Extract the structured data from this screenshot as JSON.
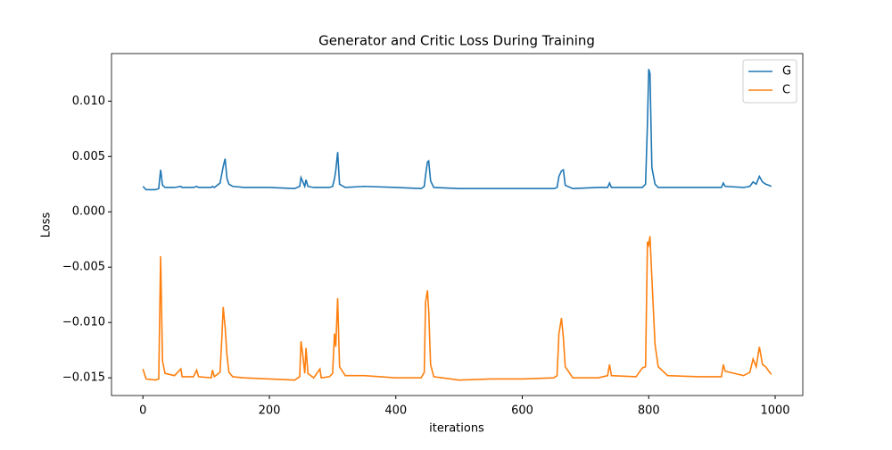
{
  "chart_data": {
    "type": "line",
    "title": "Generator and Critic Loss During Training",
    "x_label": "iterations",
    "y_label": "Loss",
    "x": [
      0,
      5,
      20,
      25,
      28,
      31,
      35,
      50,
      60,
      62,
      80,
      85,
      88,
      108,
      110,
      113,
      122,
      125,
      127,
      130,
      133,
      136,
      142,
      160,
      200,
      240,
      248,
      250,
      253,
      256,
      258,
      261,
      270,
      280,
      282,
      295,
      300,
      303,
      305,
      308,
      311,
      320,
      350,
      400,
      440,
      445,
      447,
      450,
      452,
      455,
      460,
      500,
      550,
      600,
      650,
      655,
      658,
      662,
      665,
      668,
      680,
      720,
      735,
      738,
      741,
      780,
      790,
      795,
      798,
      800,
      802,
      805,
      810,
      815,
      830,
      880,
      915,
      918,
      921,
      950,
      960,
      965,
      970,
      975,
      980,
      985,
      990,
      994
    ],
    "series": [
      {
        "name": "G",
        "color": "#1f77b4",
        "values": [
          0.0023,
          0.002,
          0.002,
          0.0021,
          0.0038,
          0.0024,
          0.0022,
          0.0022,
          0.0023,
          0.0022,
          0.0022,
          0.0023,
          0.0022,
          0.0022,
          0.0023,
          0.0022,
          0.0026,
          0.0035,
          0.0041,
          0.0048,
          0.003,
          0.0025,
          0.0023,
          0.0022,
          0.0022,
          0.0021,
          0.0023,
          0.0031,
          0.0027,
          0.0023,
          0.0029,
          0.0023,
          0.0022,
          0.0022,
          0.0022,
          0.0022,
          0.0023,
          0.003,
          0.0037,
          0.0054,
          0.0025,
          0.0022,
          0.0023,
          0.0022,
          0.0021,
          0.0023,
          0.0033,
          0.0045,
          0.0046,
          0.0028,
          0.0022,
          0.0021,
          0.0021,
          0.0021,
          0.0021,
          0.0022,
          0.0032,
          0.0037,
          0.0038,
          0.0024,
          0.0021,
          0.0022,
          0.0022,
          0.0026,
          0.0022,
          0.0022,
          0.0022,
          0.0025,
          0.008,
          0.0129,
          0.0125,
          0.004,
          0.0025,
          0.0022,
          0.0022,
          0.0022,
          0.0022,
          0.0026,
          0.0023,
          0.0022,
          0.0023,
          0.0027,
          0.0025,
          0.0032,
          0.0027,
          0.0025,
          0.0024,
          0.0023
        ]
      },
      {
        "name": "C",
        "color": "#ff7f0e",
        "values": [
          -0.0142,
          -0.0151,
          -0.0152,
          -0.0151,
          -0.004,
          -0.0135,
          -0.0146,
          -0.0148,
          -0.0142,
          -0.0149,
          -0.0149,
          -0.0143,
          -0.0149,
          -0.015,
          -0.0143,
          -0.0149,
          -0.0145,
          -0.0112,
          -0.0086,
          -0.0104,
          -0.013,
          -0.0145,
          -0.0149,
          -0.015,
          -0.0151,
          -0.0152,
          -0.0149,
          -0.0117,
          -0.013,
          -0.0146,
          -0.0123,
          -0.0146,
          -0.015,
          -0.0142,
          -0.015,
          -0.0149,
          -0.0146,
          -0.011,
          -0.0122,
          -0.0078,
          -0.014,
          -0.0148,
          -0.0148,
          -0.015,
          -0.015,
          -0.0145,
          -0.0082,
          -0.0071,
          -0.0089,
          -0.0138,
          -0.0149,
          -0.0152,
          -0.0151,
          -0.0151,
          -0.015,
          -0.0148,
          -0.011,
          -0.0096,
          -0.0114,
          -0.014,
          -0.015,
          -0.015,
          -0.0148,
          -0.0138,
          -0.0148,
          -0.0149,
          -0.0141,
          -0.014,
          -0.0027,
          -0.003,
          -0.0022,
          -0.006,
          -0.012,
          -0.014,
          -0.0148,
          -0.0149,
          -0.0149,
          -0.0138,
          -0.0144,
          -0.0148,
          -0.0145,
          -0.0133,
          -0.014,
          -0.0122,
          -0.0138,
          -0.014,
          -0.0144,
          -0.0147
        ]
      }
    ],
    "xlim": [
      -49.7,
      1043.7
    ],
    "xticks": [
      0,
      200,
      400,
      600,
      800,
      1000
    ],
    "ylim": [
      -0.0166,
      0.0143
    ],
    "yticks": [
      {
        "value": -0.015,
        "label": "−0.015"
      },
      {
        "value": -0.01,
        "label": "−0.010"
      },
      {
        "value": -0.005,
        "label": "−0.005"
      },
      {
        "value": 0,
        "label": "0.000"
      },
      {
        "value": 0.005,
        "label": "0.005"
      },
      {
        "value": 0.01,
        "label": "0.010"
      }
    ],
    "legend": "upper right",
    "grid": false
  }
}
